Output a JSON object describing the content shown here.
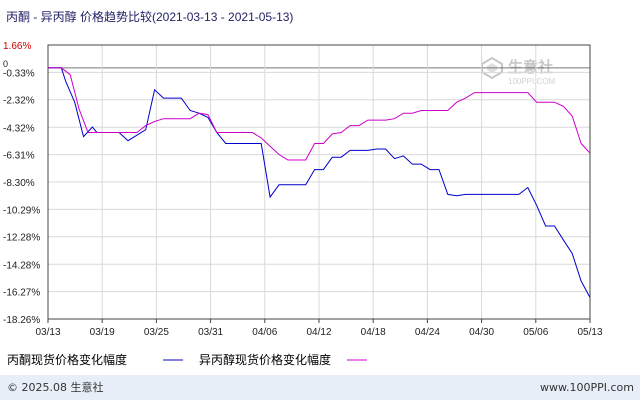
{
  "header": {
    "title_main": "丙酮 - 异丙醇 价格趋势比较",
    "title_range": "(2021-03-13 - 2021-05-13)"
  },
  "watermark": {
    "brand": "生意社",
    "url": "100PPI.COM"
  },
  "footer": {
    "copyright": "© 2025.08 生意社",
    "site": "www.100PPI.com"
  },
  "colors": {
    "acetone": "#0000cc",
    "ipa": "#cc00cc",
    "axis": "#444444",
    "grid": "#d8d8d8",
    "zero_line": "#777777",
    "positive_label": "#cc0000",
    "footer_bg": "#e8eef8",
    "title_text": "#222266"
  },
  "chart_data": {
    "type": "line",
    "y_unit": "%",
    "y_ticks": [
      "1.66%",
      "-0.33%",
      "-2.32%",
      "-4.32%",
      "-6.31%",
      "-8.30%",
      "-10.29%",
      "-12.28%",
      "-14.28%",
      "-16.27%",
      "-18.26%"
    ],
    "y_values": [
      1.66,
      -0.33,
      -2.32,
      -4.32,
      -6.31,
      -8.3,
      -10.29,
      -12.28,
      -14.28,
      -16.27,
      -18.26
    ],
    "ylim": [
      -18.26,
      1.66
    ],
    "zero_label": "0",
    "x_ticks": [
      "03/13",
      "03/19",
      "03/25",
      "03/31",
      "04/06",
      "04/12",
      "04/18",
      "04/24",
      "04/30",
      "05/06",
      "05/13"
    ],
    "grid": true,
    "legend_position": "bottom",
    "series": [
      {
        "name": "丙酮现货价格变化幅度",
        "color": "#0000cc",
        "points": [
          [
            0,
            0
          ],
          [
            1.5,
            0
          ],
          [
            2,
            -1
          ],
          [
            3,
            -2.5
          ],
          [
            4,
            -5
          ],
          [
            5,
            -4.3
          ],
          [
            5.5,
            -4.7
          ],
          [
            6,
            -4.7
          ],
          [
            7,
            -4.7
          ],
          [
            8,
            -4.7
          ],
          [
            9,
            -5.3
          ],
          [
            10,
            -4.9
          ],
          [
            11,
            -4.5
          ],
          [
            12,
            -1.6
          ],
          [
            13,
            -2.2
          ],
          [
            14,
            -2.2
          ],
          [
            15,
            -2.2
          ],
          [
            16,
            -3.1
          ],
          [
            17,
            -3.3
          ],
          [
            18,
            -3.6
          ],
          [
            19,
            -4.7
          ],
          [
            20,
            -5.5
          ],
          [
            21,
            -5.5
          ],
          [
            22,
            -5.5
          ],
          [
            23,
            -5.5
          ],
          [
            24,
            -5.5
          ],
          [
            25,
            -9.4
          ],
          [
            26,
            -8.5
          ],
          [
            27,
            -8.5
          ],
          [
            28,
            -8.5
          ],
          [
            29,
            -8.5
          ],
          [
            30,
            -7.4
          ],
          [
            31,
            -7.4
          ],
          [
            32,
            -6.5
          ],
          [
            33,
            -6.5
          ],
          [
            34,
            -6.0
          ],
          [
            35,
            -6.0
          ],
          [
            36,
            -6.0
          ],
          [
            37,
            -5.9
          ],
          [
            38,
            -5.9
          ],
          [
            39,
            -6.6
          ],
          [
            40,
            -6.4
          ],
          [
            41,
            -7.0
          ],
          [
            42,
            -7.0
          ],
          [
            43,
            -7.4
          ],
          [
            44,
            -7.4
          ],
          [
            45,
            -9.2
          ],
          [
            46,
            -9.3
          ],
          [
            47,
            -9.2
          ],
          [
            48,
            -9.2
          ],
          [
            49,
            -9.2
          ],
          [
            50,
            -9.2
          ],
          [
            51,
            -9.2
          ],
          [
            52,
            -9.2
          ],
          [
            53,
            -9.2
          ],
          [
            54,
            -8.7
          ],
          [
            55,
            -10.0
          ],
          [
            56,
            -11.5
          ],
          [
            57,
            -11.5
          ],
          [
            58,
            -12.5
          ],
          [
            59,
            -13.5
          ],
          [
            60,
            -15.5
          ],
          [
            61,
            -16.7
          ]
        ]
      },
      {
        "name": "异丙醇现货价格变化幅度",
        "color": "#cc00cc",
        "points": [
          [
            0,
            0
          ],
          [
            1.5,
            0
          ],
          [
            2.5,
            -0.5
          ],
          [
            3.5,
            -3
          ],
          [
            4.5,
            -4.7
          ],
          [
            5,
            -4.7
          ],
          [
            6,
            -4.7
          ],
          [
            7,
            -4.7
          ],
          [
            8,
            -4.7
          ],
          [
            9,
            -4.7
          ],
          [
            10,
            -4.7
          ],
          [
            11,
            -4.2
          ],
          [
            12,
            -3.9
          ],
          [
            13,
            -3.7
          ],
          [
            14,
            -3.7
          ],
          [
            15,
            -3.7
          ],
          [
            16,
            -3.7
          ],
          [
            17,
            -3.3
          ],
          [
            18,
            -3.4
          ],
          [
            19,
            -4.7
          ],
          [
            20,
            -4.7
          ],
          [
            21,
            -4.7
          ],
          [
            22,
            -4.7
          ],
          [
            23,
            -4.7
          ],
          [
            24,
            -5.1
          ],
          [
            25,
            -5.7
          ],
          [
            26,
            -6.3
          ],
          [
            27,
            -6.7
          ],
          [
            28,
            -6.7
          ],
          [
            29,
            -6.7
          ],
          [
            30,
            -5.5
          ],
          [
            31,
            -5.5
          ],
          [
            32,
            -4.8
          ],
          [
            33,
            -4.7
          ],
          [
            34,
            -4.2
          ],
          [
            35,
            -4.2
          ],
          [
            36,
            -3.8
          ],
          [
            37,
            -3.8
          ],
          [
            38,
            -3.8
          ],
          [
            39,
            -3.7
          ],
          [
            40,
            -3.3
          ],
          [
            41,
            -3.3
          ],
          [
            42,
            -3.1
          ],
          [
            43,
            -3.1
          ],
          [
            44,
            -3.1
          ],
          [
            45,
            -3.1
          ],
          [
            46,
            -2.5
          ],
          [
            47,
            -2.2
          ],
          [
            48,
            -1.8
          ],
          [
            49,
            -1.8
          ],
          [
            50,
            -1.8
          ],
          [
            51,
            -1.8
          ],
          [
            52,
            -1.8
          ],
          [
            53,
            -1.8
          ],
          [
            54,
            -1.8
          ],
          [
            55,
            -2.5
          ],
          [
            56,
            -2.5
          ],
          [
            57,
            -2.5
          ],
          [
            58,
            -2.8
          ],
          [
            59,
            -3.5
          ],
          [
            60,
            -5.5
          ],
          [
            61,
            -6.2
          ]
        ]
      }
    ]
  }
}
